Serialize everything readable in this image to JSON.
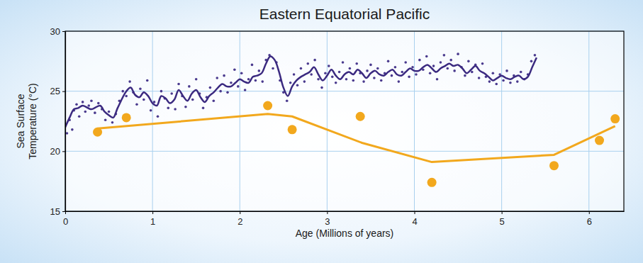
{
  "chart_data": {
    "type": "scatter",
    "title": "Eastern Equatorial Pacific",
    "xlabel": "Age (Millions of years)",
    "ylabel": [
      "Sea Surface",
      "Temperature (°C)"
    ],
    "xlim": [
      0,
      6.4
    ],
    "ylim": [
      15,
      30
    ],
    "xticks": [
      0,
      1,
      2,
      3,
      4,
      5,
      6
    ],
    "yticks": [
      15,
      20,
      25,
      30
    ],
    "grid": true,
    "series": [
      {
        "type": "scatter",
        "color": "#4a3a8e",
        "marker": "circle",
        "x": [
          0.02,
          0.05,
          0.08,
          0.1,
          0.13,
          0.16,
          0.2,
          0.23,
          0.27,
          0.3,
          0.34,
          0.38,
          0.42,
          0.46,
          0.5,
          0.54,
          0.58,
          0.62,
          0.66,
          0.7,
          0.74,
          0.78,
          0.82,
          0.86,
          0.9,
          0.94,
          0.98,
          1.02,
          1.06,
          1.1,
          1.14,
          1.18,
          1.22,
          1.26,
          1.3,
          1.34,
          1.38,
          1.42,
          1.46,
          1.5,
          1.54,
          1.58,
          1.62,
          1.66,
          1.7,
          1.74,
          1.78,
          1.82,
          1.86,
          1.9,
          1.94,
          1.98,
          2.02,
          2.06,
          2.1,
          2.14,
          2.18,
          2.22,
          2.26,
          2.3,
          2.34,
          2.38,
          2.42,
          2.46,
          2.5,
          2.54,
          2.58,
          2.62,
          2.66,
          2.7,
          2.74,
          2.78,
          2.82,
          2.86,
          2.9,
          2.94,
          2.98,
          3.02,
          3.06,
          3.1,
          3.14,
          3.18,
          3.22,
          3.26,
          3.3,
          3.34,
          3.38,
          3.42,
          3.46,
          3.5,
          3.54,
          3.58,
          3.62,
          3.66,
          3.7,
          3.74,
          3.78,
          3.82,
          3.86,
          3.9,
          3.94,
          3.98,
          4.02,
          4.06,
          4.1,
          4.14,
          4.18,
          4.22,
          4.26,
          4.3,
          4.34,
          4.38,
          4.42,
          4.46,
          4.5,
          4.54,
          4.58,
          4.62,
          4.66,
          4.7,
          4.74,
          4.78,
          4.82,
          4.86,
          4.9,
          4.94,
          4.98,
          5.02,
          5.06,
          5.1,
          5.14,
          5.18,
          5.22,
          5.26,
          5.3,
          5.34,
          5.38
        ],
        "values": [
          21.5,
          22.6,
          21.8,
          23.4,
          23.9,
          22.9,
          24.1,
          23.3,
          23.8,
          24.2,
          23.2,
          24.0,
          23.5,
          22.6,
          23.3,
          22.4,
          23.1,
          24.2,
          25.0,
          24.6,
          25.8,
          24.9,
          23.9,
          25.2,
          24.3,
          25.9,
          23.4,
          24.1,
          22.9,
          25.0,
          24.4,
          23.6,
          24.8,
          23.5,
          25.6,
          24.6,
          23.7,
          25.4,
          24.3,
          26.0,
          24.8,
          23.6,
          24.5,
          25.3,
          24.2,
          26.1,
          25.0,
          26.3,
          24.9,
          25.7,
          26.8,
          25.4,
          26.5,
          25.1,
          26.0,
          27.2,
          25.9,
          26.7,
          25.8,
          27.6,
          28.0,
          26.9,
          27.4,
          25.9,
          24.9,
          24.2,
          25.7,
          26.4,
          25.5,
          26.9,
          25.8,
          27.3,
          26.4,
          27.6,
          26.0,
          25.3,
          26.5,
          27.1,
          26.2,
          25.7,
          26.6,
          27.4,
          26.0,
          26.9,
          25.9,
          27.3,
          26.5,
          25.8,
          26.7,
          27.2,
          26.1,
          26.9,
          25.9,
          26.5,
          27.5,
          26.3,
          27.0,
          25.8,
          26.6,
          27.4,
          26.2,
          27.0,
          26.4,
          27.6,
          26.8,
          27.9,
          26.5,
          27.1,
          26.0,
          27.4,
          28.0,
          26.9,
          27.6,
          26.7,
          28.1,
          27.0,
          26.3,
          27.5,
          26.6,
          27.2,
          26.1,
          27.3,
          26.2,
          25.8,
          26.5,
          25.6,
          26.4,
          25.9,
          26.7,
          25.7,
          26.3,
          25.8,
          26.6,
          26.0,
          26.4,
          27.5,
          28.0
        ]
      },
      {
        "type": "line",
        "color": "#3b2a80",
        "line_style": "solid",
        "x": [
          0,
          0.05,
          0.1,
          0.15,
          0.2,
          0.3,
          0.4,
          0.45,
          0.5,
          0.55,
          0.6,
          0.7,
          0.75,
          0.8,
          0.85,
          0.9,
          0.95,
          1.0,
          1.05,
          1.1,
          1.15,
          1.2,
          1.25,
          1.3,
          1.35,
          1.4,
          1.45,
          1.5,
          1.55,
          1.6,
          1.65,
          1.7,
          1.75,
          1.8,
          1.85,
          1.9,
          1.95,
          2.0,
          2.05,
          2.1,
          2.15,
          2.2,
          2.25,
          2.3,
          2.35,
          2.4,
          2.45,
          2.5,
          2.55,
          2.6,
          2.65,
          2.7,
          2.75,
          2.8,
          2.85,
          2.9,
          2.95,
          3.0,
          3.05,
          3.1,
          3.15,
          3.2,
          3.25,
          3.3,
          3.35,
          3.4,
          3.45,
          3.5,
          3.55,
          3.6,
          3.65,
          3.7,
          3.75,
          3.8,
          3.85,
          3.9,
          3.95,
          4.0,
          4.05,
          4.1,
          4.15,
          4.2,
          4.25,
          4.3,
          4.35,
          4.4,
          4.45,
          4.5,
          4.55,
          4.6,
          4.65,
          4.7,
          4.75,
          4.8,
          4.85,
          4.9,
          4.95,
          5.0,
          5.05,
          5.1,
          5.15,
          5.2,
          5.25,
          5.3,
          5.35,
          5.4
        ],
        "values": [
          22.0,
          22.8,
          23.5,
          23.6,
          23.8,
          23.5,
          23.8,
          23.3,
          23.0,
          22.8,
          23.6,
          25.0,
          25.3,
          24.7,
          24.5,
          24.9,
          24.6,
          24.0,
          23.8,
          24.6,
          24.4,
          24.0,
          24.3,
          25.1,
          24.6,
          24.2,
          24.8,
          25.1,
          24.5,
          24.1,
          24.6,
          24.9,
          25.3,
          25.6,
          25.4,
          25.4,
          25.7,
          26.0,
          25.8,
          25.7,
          26.2,
          26.3,
          26.5,
          27.3,
          27.9,
          27.6,
          26.6,
          25.3,
          24.6,
          25.4,
          25.9,
          26.2,
          26.4,
          26.6,
          27.0,
          26.4,
          25.9,
          26.3,
          26.8,
          26.3,
          26.0,
          26.4,
          26.6,
          26.4,
          26.8,
          26.5,
          26.1,
          26.5,
          26.7,
          26.4,
          26.3,
          26.6,
          26.8,
          26.4,
          26.3,
          26.6,
          26.9,
          26.7,
          26.7,
          27.0,
          27.2,
          26.9,
          26.6,
          26.9,
          27.1,
          27.3,
          27.1,
          27.2,
          26.9,
          26.5,
          26.8,
          27.1,
          26.7,
          26.5,
          26.2,
          25.9,
          26.1,
          26.3,
          26.1,
          26.0,
          26.2,
          26.3,
          26.0,
          26.2,
          27.0,
          27.8
        ]
      },
      {
        "type": "scatter",
        "color": "#f2a81d",
        "marker": "circle",
        "x": [
          0.37,
          0.7,
          2.32,
          2.6,
          3.38,
          4.2,
          5.6,
          6.12,
          6.3
        ],
        "values": [
          21.6,
          22.8,
          23.8,
          21.8,
          22.9,
          17.4,
          18.8,
          20.9,
          22.7
        ]
      },
      {
        "type": "line",
        "color": "#f2a81d",
        "line_style": "solid",
        "x": [
          0.37,
          2.32,
          2.6,
          3.4,
          4.2,
          5.6,
          6.3
        ],
        "values": [
          21.9,
          23.1,
          22.9,
          20.7,
          19.1,
          19.7,
          22.1
        ]
      }
    ]
  }
}
